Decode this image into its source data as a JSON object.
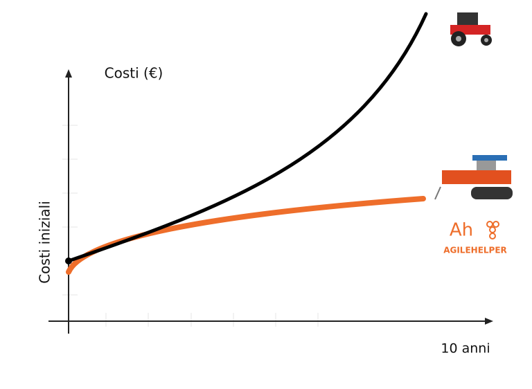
{
  "y_axis_label": "Costi (€)",
  "y_axis_origin_label": "Costi iniziali",
  "x_axis_end_label": "10 anni",
  "logo": {
    "mark": "Ah",
    "name": "AGILEHELPER"
  }
}
